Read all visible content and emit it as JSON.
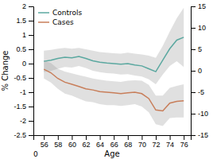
{
  "chart_data": {
    "type": "line",
    "x": [
      56,
      57,
      58,
      59,
      60,
      61,
      62,
      63,
      64,
      65,
      66,
      67,
      68,
      69,
      70,
      71,
      72,
      73,
      74,
      75,
      76
    ],
    "series": [
      {
        "name": "Controls",
        "color": "#5BA8A0",
        "values": [
          0.08,
          0.12,
          0.18,
          0.22,
          0.2,
          0.25,
          0.18,
          0.1,
          0.05,
          0.02,
          0.0,
          -0.02,
          0.0,
          -0.05,
          -0.08,
          -0.18,
          -0.28,
          0.12,
          0.52,
          0.82,
          0.92
        ],
        "upper": [
          0.45,
          0.48,
          0.52,
          0.55,
          0.52,
          0.55,
          0.5,
          0.45,
          0.4,
          0.38,
          0.36,
          0.35,
          0.38,
          0.35,
          0.32,
          0.28,
          0.2,
          0.62,
          1.12,
          1.58,
          1.95
        ],
        "lower": [
          -0.3,
          -0.26,
          -0.18,
          -0.12,
          -0.14,
          -0.08,
          -0.15,
          -0.25,
          -0.3,
          -0.33,
          -0.35,
          -0.38,
          -0.37,
          -0.42,
          -0.45,
          -0.55,
          -0.72,
          -0.38,
          -0.08,
          0.08,
          -0.12
        ]
      },
      {
        "name": "Cases",
        "color": "#C87E5A",
        "values": [
          -0.2,
          -0.32,
          -0.52,
          -0.65,
          -0.72,
          -0.8,
          -0.88,
          -0.92,
          -0.98,
          -1.0,
          -1.02,
          -1.05,
          -1.02,
          -1.0,
          -1.05,
          -1.22,
          -1.62,
          -1.65,
          -1.38,
          -1.32,
          -1.3
        ],
        "upper": [
          0.12,
          0.02,
          -0.18,
          -0.28,
          -0.34,
          -0.4,
          -0.46,
          -0.52,
          -0.56,
          -0.6,
          -0.62,
          -0.64,
          -0.6,
          -0.58,
          -0.6,
          -0.74,
          -1.12,
          -1.12,
          -0.85,
          -0.78,
          -0.72
        ],
        "lower": [
          -0.52,
          -0.66,
          -0.88,
          -1.05,
          -1.12,
          -1.22,
          -1.32,
          -1.35,
          -1.42,
          -1.45,
          -1.45,
          -1.48,
          -1.45,
          -1.42,
          -1.5,
          -1.7,
          -2.12,
          -2.18,
          -1.9,
          -1.88,
          -1.88
        ]
      }
    ],
    "x_label": "Age",
    "y_label": "% Change",
    "xlim": [
      54.5,
      77
    ],
    "xticks": [
      56,
      58,
      60,
      62,
      64,
      66,
      68,
      70,
      72,
      74,
      76
    ],
    "ylim": [
      -2.5,
      2.0
    ],
    "yticks": [
      -2.5,
      -2,
      -1.5,
      -1,
      -0.5,
      0,
      0.5,
      1,
      1.5,
      2
    ],
    "y2lim": [
      -15,
      15
    ],
    "y2ticks": [
      -15,
      -10,
      -5,
      0,
      5,
      10,
      15
    ],
    "annotations": [
      {
        "text": "0",
        "x": 54.5,
        "y": -2.5
      }
    ],
    "legend": "upper left",
    "grid": false
  }
}
